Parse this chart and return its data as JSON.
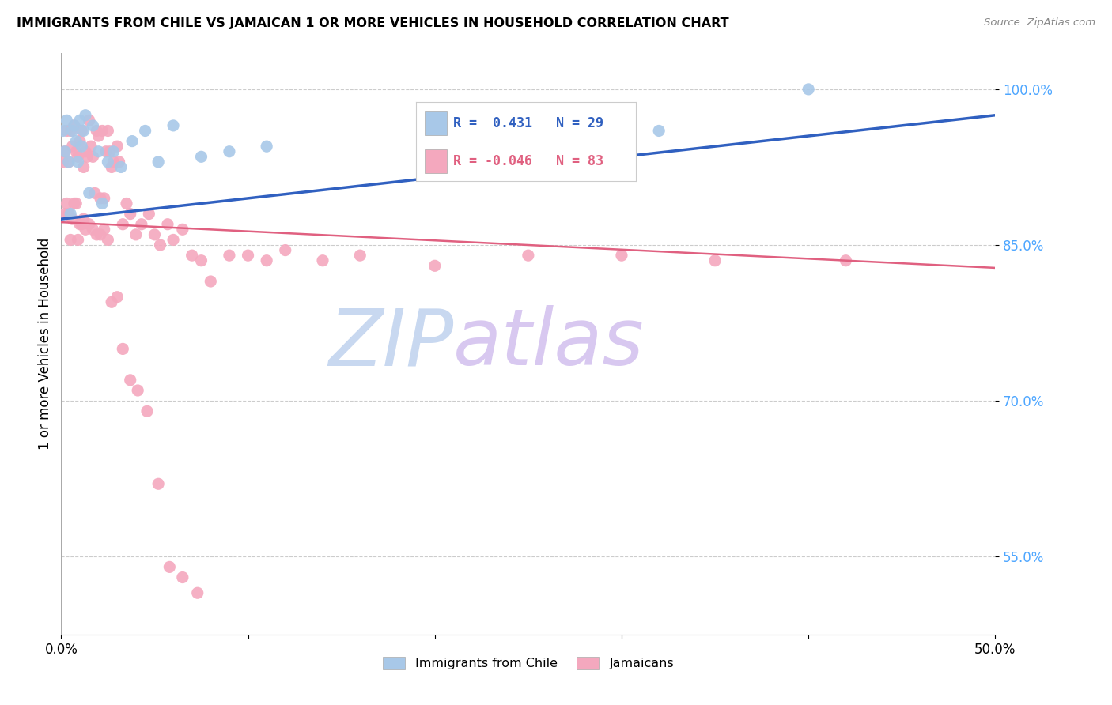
{
  "title": "IMMIGRANTS FROM CHILE VS JAMAICAN 1 OR MORE VEHICLES IN HOUSEHOLD CORRELATION CHART",
  "source": "Source: ZipAtlas.com",
  "ylabel": "1 or more Vehicles in Household",
  "ytick_labels": [
    "100.0%",
    "85.0%",
    "70.0%",
    "55.0%"
  ],
  "ytick_values": [
    1.0,
    0.85,
    0.7,
    0.55
  ],
  "xmin": 0.0,
  "xmax": 0.5,
  "ymin": 0.475,
  "ymax": 1.035,
  "legend_chile_label": "Immigrants from Chile",
  "legend_jamaican_label": "Jamaicans",
  "r_chile": 0.431,
  "n_chile": 29,
  "r_jamaican": -0.046,
  "n_jamaican": 83,
  "chile_color": "#a8c8e8",
  "jamaican_color": "#f4a8be",
  "chile_line_color": "#3060c0",
  "jamaican_line_color": "#e06080",
  "watermark_zip_color": "#c8d8f0",
  "watermark_atlas_color": "#d8c8f0",
  "background_color": "#ffffff",
  "chile_line_y0": 0.875,
  "chile_line_y1": 0.975,
  "jamaican_line_y0": 0.872,
  "jamaican_line_y1": 0.828,
  "chile_scatter_x": [
    0.001,
    0.002,
    0.003,
    0.004,
    0.005,
    0.006,
    0.007,
    0.008,
    0.009,
    0.01,
    0.011,
    0.012,
    0.013,
    0.015,
    0.017,
    0.02,
    0.022,
    0.025,
    0.028,
    0.032,
    0.038,
    0.045,
    0.052,
    0.06,
    0.075,
    0.09,
    0.11,
    0.32,
    0.4
  ],
  "chile_scatter_y": [
    0.96,
    0.94,
    0.97,
    0.93,
    0.88,
    0.96,
    0.965,
    0.95,
    0.93,
    0.97,
    0.945,
    0.96,
    0.975,
    0.9,
    0.965,
    0.94,
    0.89,
    0.93,
    0.94,
    0.925,
    0.95,
    0.96,
    0.93,
    0.965,
    0.935,
    0.94,
    0.945,
    0.96,
    1.0
  ],
  "jamaican_scatter_x": [
    0.001,
    0.002,
    0.003,
    0.004,
    0.005,
    0.006,
    0.007,
    0.008,
    0.009,
    0.01,
    0.011,
    0.012,
    0.013,
    0.014,
    0.015,
    0.016,
    0.017,
    0.018,
    0.019,
    0.02,
    0.021,
    0.022,
    0.023,
    0.024,
    0.025,
    0.026,
    0.027,
    0.028,
    0.03,
    0.031,
    0.033,
    0.035,
    0.037,
    0.04,
    0.043,
    0.047,
    0.05,
    0.053,
    0.057,
    0.06,
    0.065,
    0.07,
    0.075,
    0.08,
    0.09,
    0.1,
    0.11,
    0.12,
    0.14,
    0.16,
    0.2,
    0.25,
    0.3,
    0.35,
    0.42,
    0.002,
    0.003,
    0.004,
    0.005,
    0.006,
    0.007,
    0.008,
    0.009,
    0.01,
    0.011,
    0.012,
    0.013,
    0.015,
    0.017,
    0.019,
    0.021,
    0.023,
    0.025,
    0.027,
    0.03,
    0.033,
    0.037,
    0.041,
    0.046,
    0.052,
    0.058,
    0.065,
    0.073
  ],
  "jamaican_scatter_y": [
    0.93,
    0.94,
    0.96,
    0.93,
    0.96,
    0.945,
    0.965,
    0.94,
    0.935,
    0.95,
    0.96,
    0.925,
    0.94,
    0.935,
    0.97,
    0.945,
    0.935,
    0.9,
    0.96,
    0.955,
    0.895,
    0.96,
    0.895,
    0.94,
    0.96,
    0.94,
    0.925,
    0.93,
    0.945,
    0.93,
    0.87,
    0.89,
    0.88,
    0.86,
    0.87,
    0.88,
    0.86,
    0.85,
    0.87,
    0.855,
    0.865,
    0.84,
    0.835,
    0.815,
    0.84,
    0.84,
    0.835,
    0.845,
    0.835,
    0.84,
    0.83,
    0.84,
    0.84,
    0.835,
    0.835,
    0.88,
    0.89,
    0.88,
    0.855,
    0.875,
    0.89,
    0.89,
    0.855,
    0.87,
    0.87,
    0.875,
    0.865,
    0.87,
    0.865,
    0.86,
    0.86,
    0.865,
    0.855,
    0.795,
    0.8,
    0.75,
    0.72,
    0.71,
    0.69,
    0.62,
    0.54,
    0.53,
    0.515
  ]
}
